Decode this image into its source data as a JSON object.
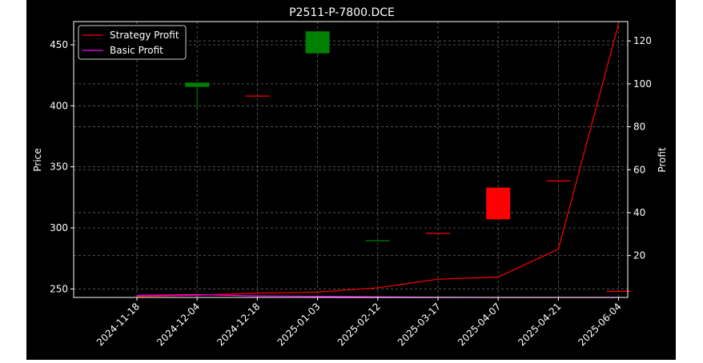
{
  "chart_data": {
    "type": "candlestick",
    "title": "P2511-P-7800.DCE",
    "ylabel_left": "Price",
    "ylabel_right": "Profit",
    "categories": [
      "2024-11-18",
      "2024-12-04",
      "2024-12-18",
      "2025-01-03",
      "2025-02-12",
      "2025-03-17",
      "2025-04-07",
      "2025-04-21",
      "2025-06-04"
    ],
    "ylim_left": [
      243,
      469
    ],
    "yticks_left": [
      250,
      300,
      350,
      400,
      450
    ],
    "ylim_right": [
      0.5,
      129
    ],
    "yticks_right": [
      20,
      40,
      60,
      80,
      100,
      120
    ],
    "grid": true,
    "legend_position": "top-left",
    "candles": [
      {
        "x": "2024-12-04",
        "open": 415.5,
        "close": 419,
        "high": 419,
        "low": 398,
        "color": "#008000"
      },
      {
        "x": "2024-12-18",
        "open": 408,
        "close": 408,
        "high": 408,
        "low": 408,
        "color": "#ff0000"
      },
      {
        "x": "2025-01-03",
        "open": 443,
        "close": 461,
        "high": 461,
        "low": 440,
        "color": "#008000"
      },
      {
        "x": "2025-02-12",
        "open": 289.5,
        "close": 289.5,
        "high": 289.5,
        "low": 289.5,
        "color": "#008000"
      },
      {
        "x": "2025-03-17",
        "open": 295.5,
        "close": 295.5,
        "high": 295.5,
        "low": 295.5,
        "color": "#ff0000"
      },
      {
        "x": "2025-04-07",
        "open": 333,
        "close": 307,
        "high": 333,
        "low": 307,
        "color": "#ff0000"
      },
      {
        "x": "2025-04-21",
        "open": 338.5,
        "close": 338.5,
        "high": 338.5,
        "low": 338.5,
        "color": "#ff0000"
      },
      {
        "x": "2025-06-04",
        "open": 248,
        "close": 248,
        "high": 248,
        "low": 248,
        "color": "#ff0000"
      }
    ],
    "series": [
      {
        "name": "Strategy Profit",
        "color": "#ff0000",
        "axis": "right",
        "values": [
          1,
          1.5,
          2.5,
          3,
          5,
          9,
          10,
          23,
          128
        ]
      },
      {
        "name": "Basic Profit",
        "color": "#ff00ff",
        "axis": "right",
        "values": [
          1.5,
          1.8,
          1.2,
          1.0,
          0.8,
          0.6,
          0.5,
          0.5,
          0.5
        ]
      }
    ]
  }
}
